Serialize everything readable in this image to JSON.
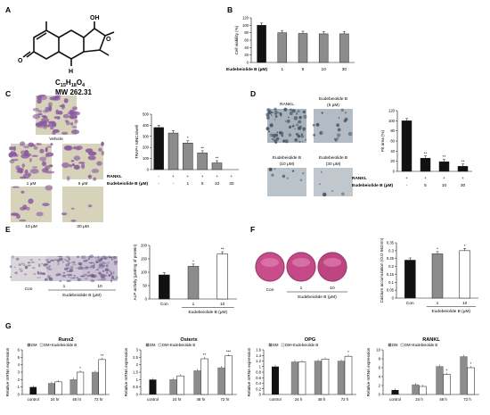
{
  "panels": {
    "A": {
      "letter": "A",
      "formula_main": "C",
      "formula_sub1": "15",
      "formula_mid": "H",
      "formula_sub2": "18",
      "formula_end": "O",
      "formula_sub3": "4",
      "mw": "MW 262.31",
      "oh": "OH",
      "o1": "O",
      "o2": "O",
      "h": "H"
    },
    "B": {
      "letter": "B"
    },
    "C": {
      "letter": "C",
      "img_labels": [
        "Vehicle",
        "1 μM",
        "5 μM",
        "10 μM",
        "30 μM"
      ]
    },
    "D": {
      "letter": "D",
      "img_labels": [
        "RANKL",
        "Eudebeiolide B",
        "(5 μM)",
        "Eudebeiolide B",
        "(10 μM)",
        "Eudebeiolide B",
        "(30 μM)"
      ]
    },
    "E": {
      "letter": "E",
      "img_labels": [
        "Con",
        "1",
        "10",
        "Eudebeiolide B (μM)"
      ]
    },
    "F": {
      "letter": "F",
      "img_labels": [
        "Con",
        "1",
        "10",
        "Eudebeiolide B (μM)"
      ]
    },
    "G": {
      "letter": "G"
    }
  },
  "chart_data": [
    {
      "id": "B",
      "type": "bar",
      "ylabel": "Cell viability (%)",
      "ylim": [
        0,
        120
      ],
      "yticks": [
        0,
        20,
        40,
        60,
        80,
        100,
        120
      ],
      "row_labels": [
        "Eudebeiolide B (μM)"
      ],
      "rows": [
        [
          "-",
          "1",
          "5",
          "10",
          "30"
        ]
      ],
      "values": [
        100,
        80,
        78,
        77,
        77
      ]
    },
    {
      "id": "C",
      "type": "bar",
      "ylabel": "TRAP+ MNCs/well",
      "ylim": [
        0,
        500
      ],
      "yticks": [
        0,
        100,
        200,
        300,
        400,
        500
      ],
      "row_labels": [
        "RANKL",
        "Eudebeiolide B (μM)"
      ],
      "rows": [
        [
          "-",
          "+",
          "+",
          "+",
          "+",
          "+"
        ],
        [
          "-",
          "-",
          "1",
          "5",
          "10",
          "30"
        ]
      ],
      "values": [
        380,
        330,
        240,
        150,
        60,
        0
      ],
      "stars": [
        "",
        "",
        "*",
        "**",
        "**",
        ""
      ]
    },
    {
      "id": "D",
      "type": "bar",
      "ylabel": "Pit area (%)",
      "ylim": [
        0,
        120
      ],
      "yticks": [
        0,
        20,
        40,
        60,
        80,
        100,
        120
      ],
      "row_labels": [
        "RANKL",
        "Eudebeiolide B (μM)"
      ],
      "rows": [
        [
          "+",
          "+",
          "+",
          "+"
        ],
        [
          "-",
          "5",
          "10",
          "30"
        ]
      ],
      "values": [
        100,
        26,
        19,
        10
      ],
      "stars": [
        "",
        "**",
        "**",
        "**"
      ]
    },
    {
      "id": "E",
      "type": "bar",
      "ylabel": "ALP activity (μM/mg of protein)",
      "ylim": [
        0,
        200
      ],
      "yticks": [
        0,
        50,
        100,
        150,
        200
      ],
      "categories": [
        "Con",
        "1",
        "10"
      ],
      "group_label": "Eudebeiolide B (μM)",
      "values": [
        90,
        122,
        168
      ],
      "stars": [
        "",
        "*",
        "**"
      ]
    },
    {
      "id": "F",
      "type": "bar",
      "ylabel": "Calcium accumulation (O.D 562nm)",
      "ylim": [
        0,
        0.35
      ],
      "yticks": [
        0,
        0.05,
        0.1,
        0.15,
        0.2,
        0.25,
        0.3,
        0.35
      ],
      "categories": [
        "Con",
        "1",
        "10"
      ],
      "group_label": "Eudebeiolide B (μM)",
      "values": [
        0.24,
        0.28,
        0.3
      ],
      "stars": [
        "",
        "*",
        "*"
      ]
    },
    {
      "id": "G1",
      "type": "bar",
      "title": "Runx2",
      "ylabel": "Relative mRNA expression",
      "ylim": [
        0,
        6
      ],
      "yticks": [
        0,
        1,
        2,
        3,
        4,
        5,
        6
      ],
      "categories": [
        "control",
        "24 hr",
        "48 hr",
        "72 hr"
      ],
      "legend": [
        "DM",
        "DM+Eudebeiolide B"
      ],
      "series": [
        {
          "name": "DM",
          "values": [
            1.0,
            1.5,
            2.0,
            3.0
          ]
        },
        {
          "name": "DM+Eudebeiolide B",
          "values": [
            null,
            1.7,
            3.0,
            4.7
          ]
        }
      ],
      "stars": [
        "",
        "",
        "*",
        "**"
      ]
    },
    {
      "id": "G2",
      "type": "bar",
      "title": "Osterix",
      "ylabel": "Relative mRNA expression",
      "ylim": [
        0,
        3
      ],
      "yticks": [
        0,
        0.5,
        1,
        1.5,
        2,
        2.5,
        3
      ],
      "categories": [
        "control",
        "24 hr",
        "48 hr",
        "72 hr"
      ],
      "legend": [
        "DM",
        "DM+Eudebeiolide B"
      ],
      "series": [
        {
          "name": "DM",
          "values": [
            1.0,
            1.0,
            1.6,
            1.8
          ]
        },
        {
          "name": "DM+Eudebeiolide B",
          "values": [
            null,
            1.25,
            2.4,
            2.6
          ]
        }
      ],
      "stars": [
        "",
        "",
        "**",
        "***"
      ]
    },
    {
      "id": "G3",
      "type": "bar",
      "title": "OPG",
      "ylabel": "Relative mRNA expression",
      "ylim": [
        0,
        1.6
      ],
      "yticks": [
        0,
        0.2,
        0.4,
        0.6,
        0.8,
        1,
        1.2,
        1.4,
        1.6
      ],
      "categories": [
        "control",
        "24 h",
        "48 h",
        "72 h"
      ],
      "legend": [
        "DM",
        "DM+Eudebeiolide B"
      ],
      "series": [
        {
          "name": "DM",
          "values": [
            1.0,
            1.17,
            1.2,
            1.2
          ]
        },
        {
          "name": "DM+Eudebeiolide B",
          "values": [
            null,
            1.17,
            1.27,
            1.37
          ]
        }
      ],
      "stars": [
        "",
        "",
        "",
        "*"
      ]
    },
    {
      "id": "G4",
      "type": "bar",
      "title": "RANKL",
      "ylabel": "Relative mRNA expression",
      "ylim": [
        0,
        10
      ],
      "yticks": [
        0,
        2,
        4,
        6,
        8,
        10
      ],
      "categories": [
        "control",
        "24 h",
        "48 h",
        "72 h"
      ],
      "legend": [
        "DM",
        "DM+Eudebeiolide B"
      ],
      "series": [
        {
          "name": "DM",
          "values": [
            1.0,
            2.2,
            6.3,
            8.5
          ]
        },
        {
          "name": "DM+Eudebeiolide B",
          "values": [
            null,
            1.8,
            4.5,
            6.0
          ]
        }
      ],
      "stars": [
        "",
        "",
        "*",
        "*"
      ]
    }
  ],
  "colors": {
    "black": "#111111",
    "gray": "#8c8c8c",
    "white": "#ffffff",
    "trap_bg": "#d6d3ba",
    "trap_cell": "#8a5aa0",
    "pit_bg": "#a9b3bd",
    "alp_bg": "#d9d4dc",
    "alp_cell": "#6e5a86",
    "ars_well": "#c94d8b"
  }
}
